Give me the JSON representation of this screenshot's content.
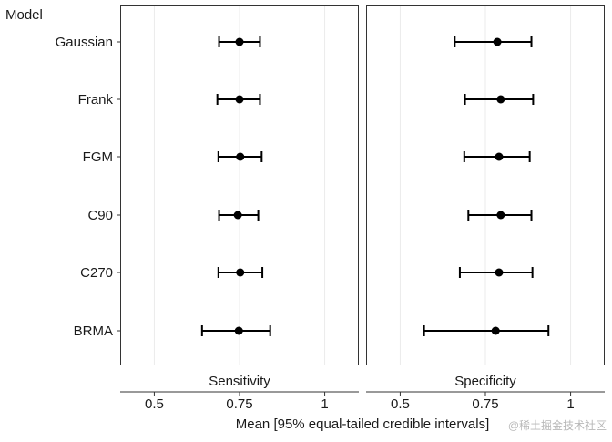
{
  "watermark": "@稀土掘金技术社区",
  "chart_data": {
    "type": "forest",
    "y_title": "Model",
    "xlabel": "Mean [95% equal-tailed credible intervals]",
    "categories": [
      "Gaussian",
      "Frank",
      "FGM",
      "C90",
      "C270",
      "BRMA"
    ],
    "xlim": [
      0.4,
      1.1
    ],
    "xticks": [
      0.5,
      0.75,
      1
    ],
    "xtick_labels": [
      "0.5",
      "0.75",
      "1"
    ],
    "grid": true,
    "panels": [
      {
        "strip": "Sensitivity",
        "points": [
          {
            "model": "Gaussian",
            "mean": 0.75,
            "lower": 0.69,
            "upper": 0.81
          },
          {
            "model": "Frank",
            "mean": 0.75,
            "lower": 0.685,
            "upper": 0.81
          },
          {
            "model": "FGM",
            "mean": 0.752,
            "lower": 0.688,
            "upper": 0.815
          },
          {
            "model": "C90",
            "mean": 0.745,
            "lower": 0.69,
            "upper": 0.805
          },
          {
            "model": "C270",
            "mean": 0.752,
            "lower": 0.688,
            "upper": 0.817
          },
          {
            "model": "BRMA",
            "mean": 0.748,
            "lower": 0.64,
            "upper": 0.84
          }
        ]
      },
      {
        "strip": "Specificity",
        "points": [
          {
            "model": "Gaussian",
            "mean": 0.785,
            "lower": 0.66,
            "upper": 0.885
          },
          {
            "model": "Frank",
            "mean": 0.795,
            "lower": 0.69,
            "upper": 0.89
          },
          {
            "model": "FGM",
            "mean": 0.79,
            "lower": 0.688,
            "upper": 0.88
          },
          {
            "model": "C90",
            "mean": 0.795,
            "lower": 0.7,
            "upper": 0.885
          },
          {
            "model": "C270",
            "mean": 0.79,
            "lower": 0.675,
            "upper": 0.888
          },
          {
            "model": "BRMA",
            "mean": 0.78,
            "lower": 0.57,
            "upper": 0.935
          }
        ]
      }
    ]
  }
}
